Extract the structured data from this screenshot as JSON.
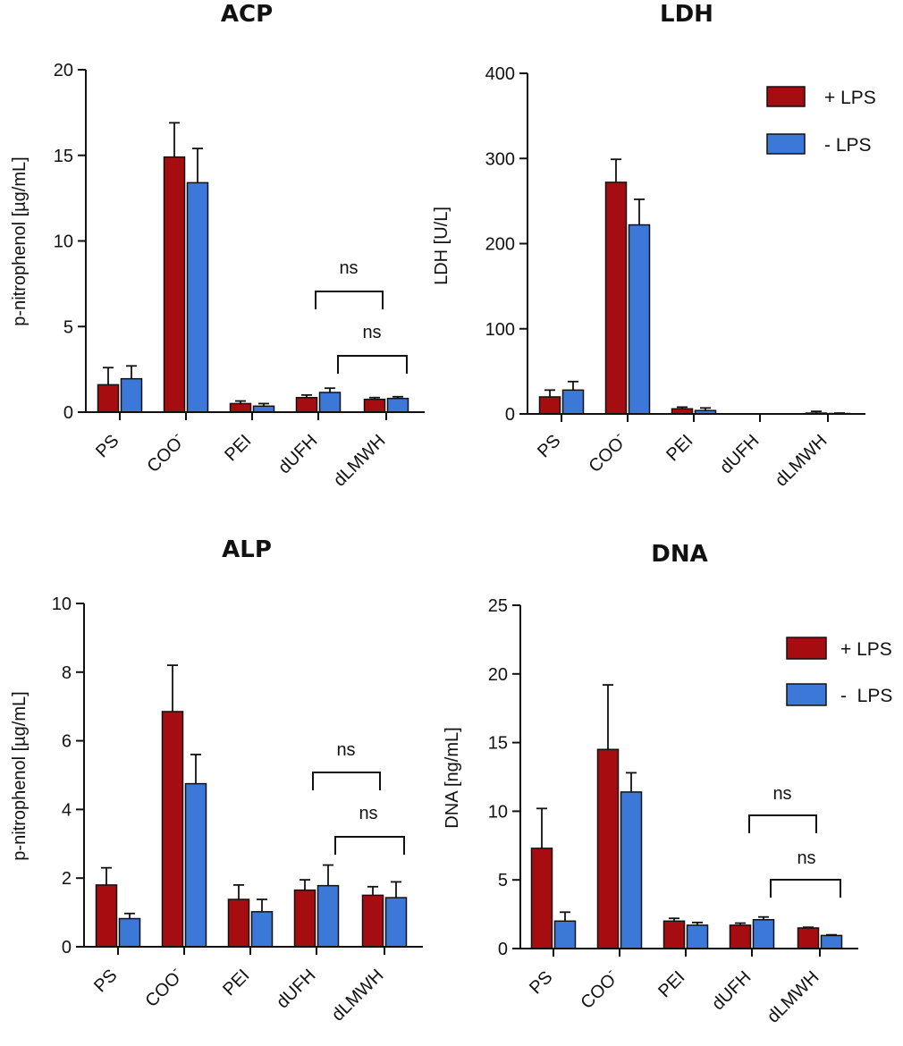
{
  "colors": {
    "plus_lps": "#a50d10",
    "minus_lps": "#3c78d8"
  },
  "chart_data": [
    {
      "id": "acp",
      "type": "bar",
      "title": "ACP",
      "ylabel": "p-nitrophenol [µg/mL]",
      "ylim": [
        0,
        20
      ],
      "yticks": [
        "0",
        "5",
        "10",
        "15",
        "20"
      ],
      "categories": [
        "PS",
        "COO",
        "PEI",
        "dUFH",
        "dLMWH"
      ],
      "series": [
        {
          "name": "+ LPS",
          "values": [
            1.6,
            14.9,
            0.5,
            0.85,
            0.75
          ],
          "errors": [
            1.0,
            2.0,
            0.15,
            0.15,
            0.1
          ]
        },
        {
          "name": "- LPS",
          "values": [
            1.95,
            13.4,
            0.35,
            1.15,
            0.8
          ],
          "errors": [
            0.75,
            2.0,
            0.15,
            0.25,
            0.1
          ]
        }
      ],
      "annotations": [
        {
          "text": "ns",
          "from": 3,
          "to": 4
        },
        {
          "text": "ns",
          "from": 3,
          "to": 4
        }
      ],
      "legend": null
    },
    {
      "id": "ldh",
      "type": "bar",
      "title": "LDH",
      "ylabel": "LDH [U/L]",
      "ylim": [
        0,
        400
      ],
      "yticks": [
        "0",
        "100",
        "200",
        "300",
        "400"
      ],
      "categories": [
        "PS",
        "COO",
        "PEI",
        "dUFH",
        "dLMWH"
      ],
      "series": [
        {
          "name": "+ LPS",
          "values": [
            20,
            272,
            6,
            0,
            1
          ],
          "errors": [
            8,
            27,
            2,
            0,
            2
          ]
        },
        {
          "name": "- LPS",
          "values": [
            28,
            222,
            4,
            0,
            0.5
          ],
          "errors": [
            10,
            30,
            3,
            0,
            0.5
          ]
        }
      ],
      "annotations": [],
      "legend": {
        "position": "top-right",
        "entries": [
          "+ LPS",
          "- LPS"
        ]
      }
    },
    {
      "id": "alp",
      "type": "bar",
      "title": "ALP",
      "ylabel": "p-nitrophenol [µg/mL]",
      "ylim": [
        0,
        10
      ],
      "yticks": [
        "0",
        "2",
        "4",
        "6",
        "8",
        "10"
      ],
      "categories": [
        "PS",
        "COO",
        "PEI",
        "dUFH",
        "dLMWH"
      ],
      "series": [
        {
          "name": "+ LPS",
          "values": [
            1.8,
            6.85,
            1.38,
            1.65,
            1.5
          ],
          "errors": [
            0.5,
            1.35,
            0.42,
            0.3,
            0.25
          ]
        },
        {
          "name": "- LPS",
          "values": [
            0.82,
            4.75,
            1.02,
            1.78,
            1.43
          ],
          "errors": [
            0.15,
            0.85,
            0.36,
            0.6,
            0.46
          ]
        }
      ],
      "annotations": [
        {
          "text": "ns",
          "from": 3,
          "to": 4
        },
        {
          "text": "ns",
          "from": 3,
          "to": 4
        }
      ],
      "legend": null
    },
    {
      "id": "dna",
      "type": "bar",
      "title": "DNA",
      "ylabel": "DNA [ng/mL]",
      "ylim": [
        0,
        25
      ],
      "yticks": [
        "0",
        "5",
        "10",
        "15",
        "20",
        "25"
      ],
      "categories": [
        "PS",
        "COO",
        "PEI",
        "dUFH",
        "dLMWH"
      ],
      "series": [
        {
          "name": "+ LPS",
          "values": [
            7.3,
            14.5,
            2.0,
            1.7,
            1.5
          ],
          "errors": [
            2.9,
            4.7,
            0.2,
            0.15,
            0.05
          ]
        },
        {
          "name": "- LPS",
          "values": [
            2.0,
            11.4,
            1.7,
            2.1,
            0.95
          ],
          "errors": [
            0.65,
            1.4,
            0.2,
            0.2,
            0.05
          ]
        }
      ],
      "annotations": [
        {
          "text": "ns",
          "from": 3,
          "to": 4
        },
        {
          "text": "ns",
          "from": 3,
          "to": 4
        }
      ],
      "legend": {
        "position": "right",
        "entries": [
          "+ LPS",
          "-  LPS"
        ]
      }
    }
  ]
}
